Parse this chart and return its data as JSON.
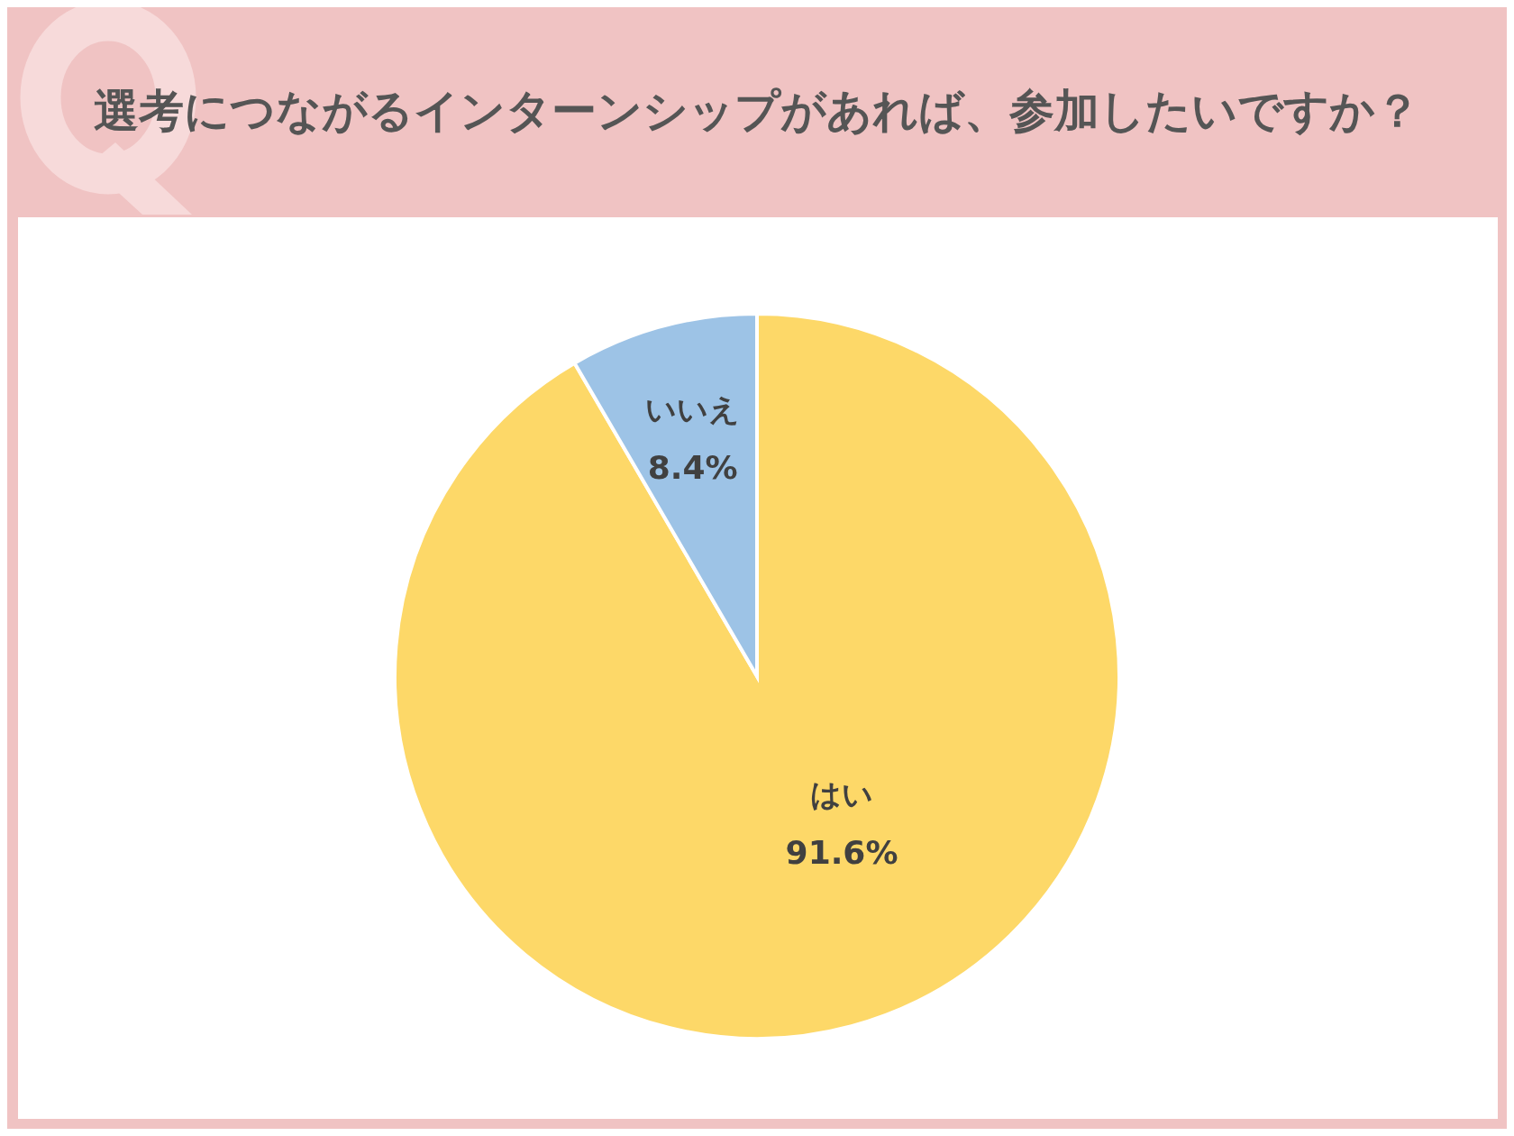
{
  "chart_data": {
    "type": "pie",
    "title": "選考につながるインターンシップがあれば、参加したいですか？",
    "categories": [
      "はい",
      "いいえ"
    ],
    "values": [
      91.6,
      8.4
    ],
    "value_labels": [
      "91.6%",
      "8.4%"
    ],
    "colors": [
      "#fdd868",
      "#9dc3e6"
    ]
  }
}
